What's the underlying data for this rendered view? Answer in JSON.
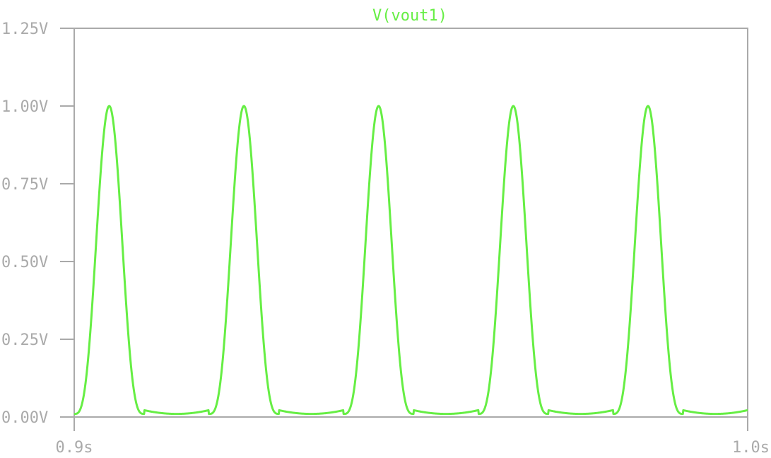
{
  "chart_data": {
    "type": "line",
    "title": "V(vout1)",
    "xlabel": "",
    "ylabel": "",
    "x_ticks": [
      "0.9s",
      "1.0s"
    ],
    "y_ticks": [
      "0.00V",
      "0.25V",
      "0.50V",
      "0.75V",
      "1.00V",
      "1.25V"
    ],
    "xlim": [
      0.9,
      1.0
    ],
    "ylim": [
      0.0,
      1.25
    ],
    "grid": false,
    "series": [
      {
        "name": "V(vout1)",
        "color": "#66ee44",
        "shape": "periodic raised-cosine pulses",
        "periods": 5,
        "period_s": 0.02,
        "peak_times_s": [
          0.9052,
          0.9252,
          0.9452,
          0.9652,
          0.9852
        ],
        "max_v": 1.0,
        "min_v": 0.01
      }
    ]
  },
  "colors": {
    "axis": "#aaaaaa",
    "tick_text": "#aaaaaa",
    "trace": "#66ee44",
    "title": "#66ee44",
    "background": "#ffffff"
  }
}
